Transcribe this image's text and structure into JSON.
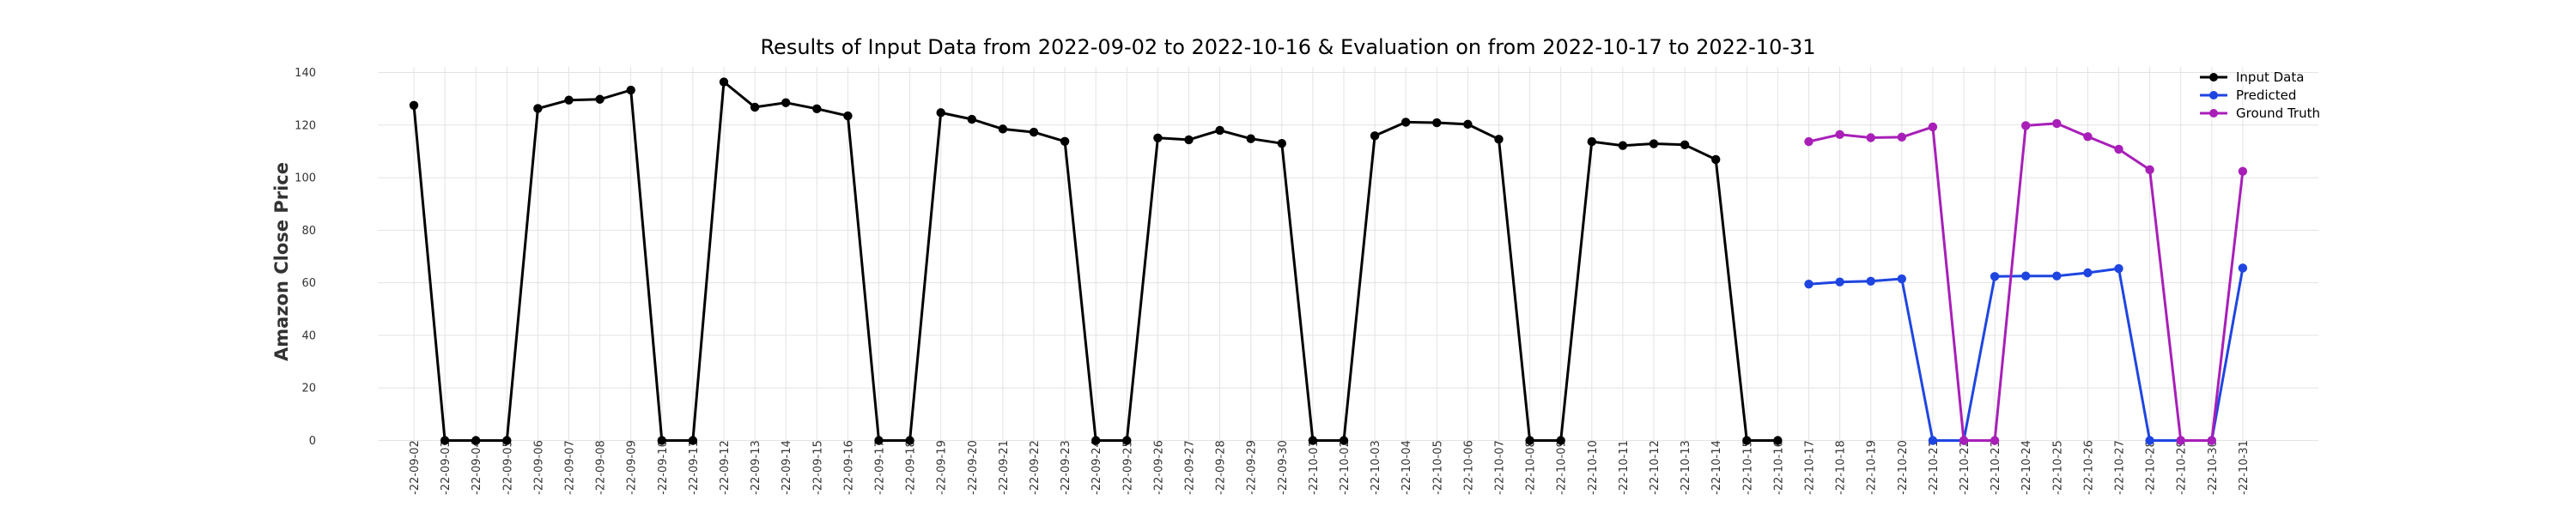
{
  "chart_data": {
    "type": "line",
    "title": "Results of Input Data from 2022-09-02 to 2022-10-16 & Evaluation on from 2022-10-17 to 2022-10-31",
    "xlabel": "",
    "ylabel": "Amazon Close Price",
    "ylim": [
      0,
      140
    ],
    "yticks": [
      0,
      20,
      40,
      60,
      80,
      100,
      120,
      140
    ],
    "grid": true,
    "legend_position": "top-right",
    "categories": [
      "2022-09-02",
      "2022-09-03",
      "2022-09-04",
      "2022-09-05",
      "2022-09-06",
      "2022-09-07",
      "2022-09-08",
      "2022-09-09",
      "2022-09-10",
      "2022-09-11",
      "2022-09-12",
      "2022-09-13",
      "2022-09-14",
      "2022-09-15",
      "2022-09-16",
      "2022-09-17",
      "2022-09-18",
      "2022-09-19",
      "2022-09-20",
      "2022-09-21",
      "2022-09-22",
      "2022-09-23",
      "2022-09-24",
      "2022-09-25",
      "2022-09-26",
      "2022-09-27",
      "2022-09-28",
      "2022-09-29",
      "2022-09-30",
      "2022-10-01",
      "2022-10-02",
      "2022-10-03",
      "2022-10-04",
      "2022-10-05",
      "2022-10-06",
      "2022-10-07",
      "2022-10-08",
      "2022-10-09",
      "2022-10-10",
      "2022-10-11",
      "2022-10-12",
      "2022-10-13",
      "2022-10-14",
      "2022-10-15",
      "2022-10-16",
      "2022-10-17",
      "2022-10-18",
      "2022-10-19",
      "2022-10-20",
      "2022-10-21",
      "2022-10-22",
      "2022-10-23",
      "2022-10-24",
      "2022-10-25",
      "2022-10-26",
      "2022-10-27",
      "2022-10-28",
      "2022-10-29",
      "2022-10-30",
      "2022-10-31"
    ],
    "tick_labels": [
      "-22-09-02",
      "-22-09-03",
      "-22-09-04",
      "-22-09-05",
      "-22-09-06",
      "-22-09-07",
      "-22-09-08",
      "-22-09-09",
      "-22-09-10",
      "-22-09-11",
      "-22-09-12",
      "-22-09-13",
      "-22-09-14",
      "-22-09-15",
      "-22-09-16",
      "-22-09-17",
      "-22-09-18",
      "-22-09-19",
      "-22-09-20",
      "-22-09-21",
      "-22-09-22",
      "-22-09-23",
      "-22-09-24",
      "-22-09-25",
      "-22-09-26",
      "-22-09-27",
      "-22-09-28",
      "-22-09-29",
      "-22-09-30",
      "-22-10-01",
      "-22-10-02",
      "-22-10-03",
      "-22-10-04",
      "-22-10-05",
      "-22-10-06",
      "-22-10-07",
      "-22-10-08",
      "-22-10-09",
      "-22-10-10",
      "-22-10-11",
      "-22-10-12",
      "-22-10-13",
      "-22-10-14",
      "-22-10-15",
      "-22-10-16",
      "-22-10-17",
      "-22-10-18",
      "-22-10-19",
      "-22-10-20",
      "-22-10-21",
      "-22-10-22",
      "-22-10-23",
      "-22-10-24",
      "-22-10-25",
      "-22-10-26",
      "-22-10-27",
      "-22-10-28",
      "-22-10-29",
      "-22-10-30",
      "-22-10-31"
    ],
    "series": [
      {
        "name": "Input Data",
        "color": "#000000",
        "x": [
          "2022-09-02",
          "2022-09-03",
          "2022-09-04",
          "2022-09-05",
          "2022-09-06",
          "2022-09-07",
          "2022-09-08",
          "2022-09-09",
          "2022-09-10",
          "2022-09-11",
          "2022-09-12",
          "2022-09-13",
          "2022-09-14",
          "2022-09-15",
          "2022-09-16",
          "2022-09-17",
          "2022-09-18",
          "2022-09-19",
          "2022-09-20",
          "2022-09-21",
          "2022-09-22",
          "2022-09-23",
          "2022-09-24",
          "2022-09-25",
          "2022-09-26",
          "2022-09-27",
          "2022-09-28",
          "2022-09-29",
          "2022-09-30",
          "2022-10-01",
          "2022-10-02",
          "2022-10-03",
          "2022-10-04",
          "2022-10-05",
          "2022-10-06",
          "2022-10-07",
          "2022-10-08",
          "2022-10-09",
          "2022-10-10",
          "2022-10-11",
          "2022-10-12",
          "2022-10-13",
          "2022-10-14",
          "2022-10-15",
          "2022-10-16"
        ],
        "values": [
          127.5,
          0,
          0,
          0,
          126.3,
          129.5,
          129.8,
          133.3,
          0,
          0,
          136.4,
          126.8,
          128.5,
          126.2,
          123.5,
          0,
          0,
          124.7,
          122.2,
          118.5,
          117.3,
          113.8,
          0,
          0,
          115.1,
          114.4,
          118.0,
          114.8,
          113.0,
          0,
          0,
          115.9,
          121.1,
          120.9,
          120.3,
          114.6,
          0,
          0,
          113.7,
          112.2,
          112.9,
          112.5,
          106.9,
          0,
          0
        ]
      },
      {
        "name": "Predicted",
        "color": "#1f45e0",
        "x": [
          "2022-10-17",
          "2022-10-18",
          "2022-10-19",
          "2022-10-20",
          "2022-10-21",
          "2022-10-22",
          "2022-10-23",
          "2022-10-24",
          "2022-10-25",
          "2022-10-26",
          "2022-10-27",
          "2022-10-28",
          "2022-10-29",
          "2022-10-30",
          "2022-10-31"
        ],
        "values": [
          59.5,
          60.3,
          60.6,
          61.5,
          0,
          0,
          62.4,
          62.6,
          62.6,
          63.8,
          65.4,
          0,
          0,
          0,
          65.6
        ]
      },
      {
        "name": "Ground Truth",
        "color": "#a81fb8",
        "x": [
          "2022-10-17",
          "2022-10-18",
          "2022-10-19",
          "2022-10-20",
          "2022-10-21",
          "2022-10-22",
          "2022-10-23",
          "2022-10-24",
          "2022-10-25",
          "2022-10-26",
          "2022-10-27",
          "2022-10-28",
          "2022-10-29",
          "2022-10-30",
          "2022-10-31"
        ],
        "values": [
          113.7,
          116.4,
          115.2,
          115.4,
          119.3,
          0,
          0,
          119.8,
          120.6,
          115.6,
          110.8,
          103.0,
          0,
          0,
          102.4
        ]
      }
    ]
  }
}
